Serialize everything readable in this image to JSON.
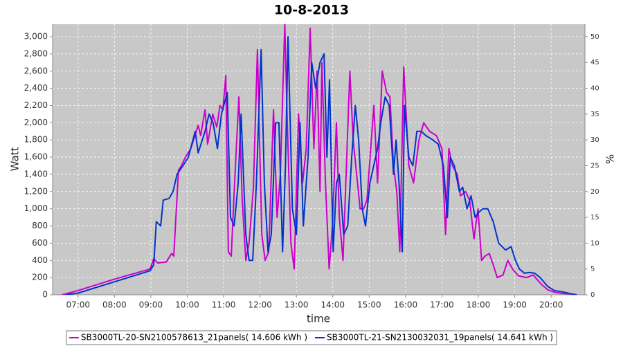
{
  "chart_data": {
    "type": "line",
    "title": "10-8-2013",
    "xlabel": "time",
    "ylabel": "Watt",
    "y2label": "%",
    "grid": true,
    "legend": "bottom",
    "xlim": [
      6.3,
      20.93
    ],
    "ylim": [
      0,
      3145
    ],
    "y2lim": [
      0,
      52.4
    ],
    "xticks": [
      {
        "value": 7,
        "label": "07:00"
      },
      {
        "value": 8,
        "label": "08:00"
      },
      {
        "value": 9,
        "label": "09:00"
      },
      {
        "value": 10,
        "label": "10:00"
      },
      {
        "value": 11,
        "label": "11:00"
      },
      {
        "value": 12,
        "label": "12:00"
      },
      {
        "value": 13,
        "label": "13:00"
      },
      {
        "value": 14,
        "label": "14:00"
      },
      {
        "value": 15,
        "label": "15:00"
      },
      {
        "value": 16,
        "label": "16:00"
      },
      {
        "value": 17,
        "label": "17:00"
      },
      {
        "value": 18,
        "label": "18:00"
      },
      {
        "value": 19,
        "label": "19:00"
      },
      {
        "value": 20,
        "label": "20:00"
      }
    ],
    "yticks": [
      0,
      200,
      400,
      600,
      800,
      {
        "value": 1000,
        "label": "1,000"
      },
      {
        "value": 1200,
        "label": "1,200"
      },
      {
        "value": 1400,
        "label": "1,400"
      },
      {
        "value": 1600,
        "label": "1,600"
      },
      {
        "value": 1800,
        "label": "1,800"
      },
      {
        "value": 2000,
        "label": "2,000"
      },
      {
        "value": 2200,
        "label": "2,200"
      },
      {
        "value": 2400,
        "label": "2,400"
      },
      {
        "value": 2600,
        "label": "2,600"
      },
      {
        "value": 2800,
        "label": "2,800"
      },
      {
        "value": 3000,
        "label": "3,000"
      }
    ],
    "y2ticks": [
      0,
      5,
      10,
      15,
      20,
      25,
      30,
      35,
      40,
      45,
      50
    ],
    "series": [
      {
        "name": "SB3000TL-20-SN2100578613_21panels( 14.606 kWh )",
        "color": "#cc00cc",
        "x": [
          6.56,
          7.0,
          7.99,
          8.98,
          9.08,
          9.19,
          9.42,
          9.57,
          9.63,
          9.76,
          9.84,
          9.95,
          10.1,
          10.3,
          10.37,
          10.49,
          10.56,
          10.7,
          10.81,
          10.9,
          10.98,
          11.06,
          11.13,
          11.21,
          11.29,
          11.42,
          11.51,
          11.61,
          11.7,
          11.82,
          11.93,
          12.05,
          12.14,
          12.24,
          12.37,
          12.47,
          12.56,
          12.68,
          12.75,
          12.85,
          12.94,
          13.06,
          13.17,
          13.27,
          13.38,
          13.48,
          13.57,
          13.65,
          13.7,
          13.8,
          13.9,
          13.99,
          14.1,
          14.18,
          14.28,
          14.47,
          14.56,
          14.75,
          14.85,
          14.94,
          15.13,
          15.23,
          15.36,
          15.48,
          15.57,
          15.67,
          15.76,
          15.84,
          15.95,
          16.09,
          16.22,
          16.37,
          16.5,
          16.66,
          16.85,
          17.0,
          17.1,
          17.19,
          17.29,
          17.42,
          17.51,
          17.65,
          17.76,
          17.88,
          17.99,
          18.09,
          18.18,
          18.3,
          18.41,
          18.52,
          18.68,
          18.81,
          18.94,
          19.1,
          19.32,
          19.51,
          19.61,
          19.74,
          19.9,
          20.09,
          20.31,
          20.56,
          20.71
        ],
        "values": [
          0,
          50,
          180,
          300,
          420,
          370,
          380,
          480,
          450,
          1450,
          1500,
          1600,
          1700,
          1970,
          1850,
          2150,
          1750,
          2100,
          1950,
          2200,
          2150,
          2550,
          500,
          450,
          1200,
          2300,
          1100,
          400,
          600,
          1250,
          2850,
          700,
          400,
          500,
          2150,
          900,
          1400,
          3150,
          2000,
          600,
          300,
          2100,
          1300,
          1700,
          3100,
          1700,
          2600,
          1200,
          2700,
          1300,
          300,
          800,
          2000,
          900,
          400,
          2600,
          1800,
          1000,
          1000,
          1100,
          2200,
          1300,
          2600,
          2350,
          2300,
          1500,
          1200,
          500,
          2650,
          1500,
          1300,
          1800,
          2000,
          1900,
          1850,
          1700,
          700,
          1700,
          1500,
          1400,
          1150,
          1200,
          1100,
          650,
          1000,
          400,
          450,
          480,
          350,
          200,
          230,
          400,
          300,
          220,
          200,
          230,
          180,
          120,
          60,
          30,
          15,
          10,
          0
        ]
      },
      {
        "name": "SB3000TL-21-SN2130032031_19panels( 14.641 kWh )",
        "color": "#0033cc",
        "x": [
          6.66,
          7.0,
          7.99,
          8.98,
          9.08,
          9.15,
          9.27,
          9.34,
          9.5,
          9.61,
          9.72,
          9.88,
          10.03,
          10.22,
          10.3,
          10.49,
          10.6,
          10.71,
          10.83,
          10.94,
          11.1,
          11.19,
          11.29,
          11.4,
          11.48,
          11.61,
          11.7,
          11.8,
          11.9,
          12.03,
          12.12,
          12.22,
          12.31,
          12.43,
          12.52,
          12.62,
          12.7,
          12.77,
          12.89,
          13.0,
          13.1,
          13.19,
          13.32,
          13.42,
          13.53,
          13.65,
          13.76,
          13.84,
          13.91,
          14.01,
          14.1,
          14.18,
          14.3,
          14.41,
          14.52,
          14.62,
          14.71,
          14.81,
          14.9,
          15.02,
          15.23,
          15.32,
          15.44,
          15.55,
          15.67,
          15.74,
          15.82,
          15.91,
          15.97,
          16.09,
          16.2,
          16.31,
          16.43,
          16.56,
          16.75,
          16.9,
          17.04,
          17.15,
          17.23,
          17.34,
          17.48,
          17.57,
          17.69,
          17.8,
          17.91,
          17.99,
          18.12,
          18.26,
          18.41,
          18.56,
          18.75,
          18.9,
          19.02,
          19.13,
          19.27,
          19.4,
          19.55,
          19.7,
          19.9,
          20.09,
          20.37,
          20.56,
          20.7
        ],
        "values": [
          0,
          20,
          150,
          280,
          350,
          850,
          800,
          1100,
          1120,
          1200,
          1400,
          1500,
          1600,
          1900,
          1650,
          1900,
          2100,
          2000,
          1700,
          2100,
          2350,
          900,
          800,
          1300,
          2100,
          700,
          400,
          400,
          1300,
          2850,
          1300,
          500,
          700,
          2000,
          2000,
          500,
          1500,
          3000,
          1000,
          700,
          2000,
          800,
          1600,
          2700,
          2400,
          2700,
          2800,
          1600,
          2500,
          500,
          1300,
          1400,
          700,
          800,
          1600,
          2200,
          1800,
          1000,
          800,
          1300,
          1700,
          2000,
          2300,
          2200,
          1400,
          1800,
          1300,
          500,
          2200,
          1600,
          1500,
          1900,
          1900,
          1850,
          1800,
          1750,
          1500,
          900,
          1600,
          1500,
          1200,
          1250,
          1000,
          1150,
          900,
          950,
          1000,
          1000,
          850,
          600,
          520,
          560,
          400,
          300,
          250,
          260,
          250,
          200,
          100,
          50,
          30,
          10,
          0
        ]
      }
    ]
  }
}
